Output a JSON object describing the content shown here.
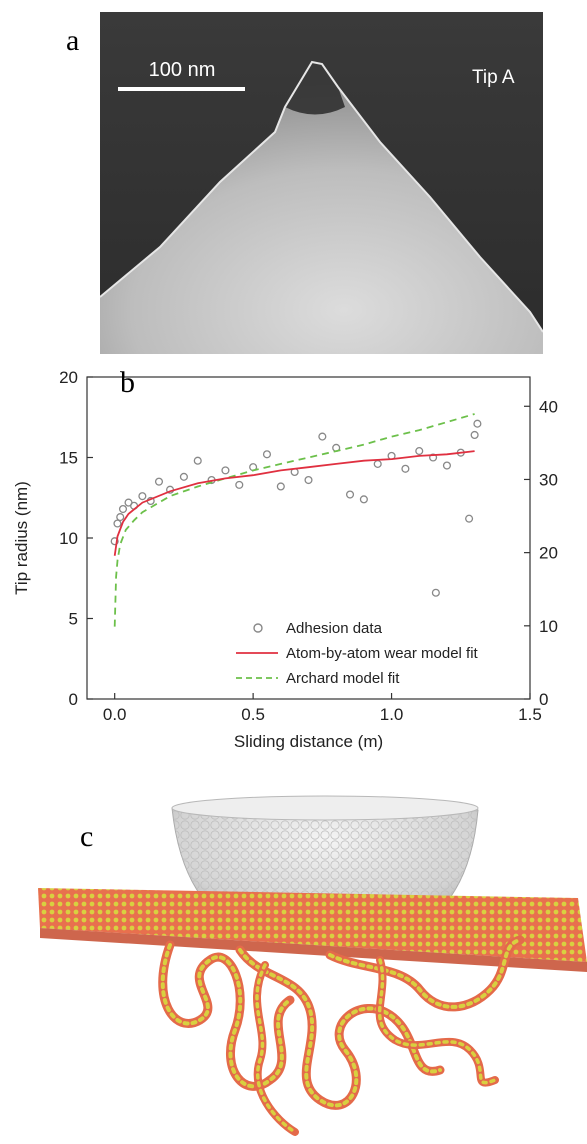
{
  "panel_a": {
    "letter": "a",
    "scale_bar_label": "100 nm",
    "tip_label": "Tip A"
  },
  "panel_c": {
    "letter": "c"
  },
  "chart_data": {
    "type": "scatter",
    "letter": "b",
    "xlabel": "Sliding distance (m)",
    "ylabel": "Tip radius (nm)",
    "xlim": [
      -0.1,
      1.5
    ],
    "ylim": [
      0,
      20
    ],
    "xticks": [
      0.0,
      0.5,
      1.0,
      1.5
    ],
    "xtick_labels": [
      "0.0",
      "0.5",
      "1.0",
      "1.5"
    ],
    "yticks": [
      0,
      5,
      10,
      15,
      20
    ],
    "ytick_labels": [
      "0",
      "5",
      "10",
      "15",
      "20"
    ],
    "y2lim": [
      0,
      44
    ],
    "y2ticks": [
      0,
      10,
      20,
      30,
      40
    ],
    "y2tick_labels": [
      "0",
      "10",
      "20",
      "30",
      "40"
    ],
    "grid": false,
    "legend_position": "bottom-right",
    "colors": {
      "adhesion": "#888888",
      "atom": "#e03040",
      "archard": "#6cc04a"
    },
    "series": [
      {
        "name": "Adhesion data",
        "style": "open-circle",
        "x": [
          0.0,
          0.01,
          0.02,
          0.03,
          0.05,
          0.07,
          0.1,
          0.13,
          0.16,
          0.2,
          0.25,
          0.3,
          0.35,
          0.4,
          0.45,
          0.5,
          0.55,
          0.6,
          0.65,
          0.7,
          0.75,
          0.8,
          0.85,
          0.9,
          0.95,
          1.0,
          1.05,
          1.1,
          1.15,
          1.2,
          1.25,
          1.28,
          1.3,
          1.31,
          1.16
        ],
        "y": [
          9.8,
          10.9,
          11.3,
          11.8,
          12.2,
          12.0,
          12.6,
          12.3,
          13.5,
          13.0,
          13.8,
          14.8,
          13.6,
          14.2,
          13.3,
          14.4,
          15.2,
          13.2,
          14.1,
          13.6,
          16.3,
          15.6,
          12.7,
          12.4,
          14.6,
          15.1,
          14.3,
          15.4,
          15.0,
          14.5,
          15.3,
          11.2,
          16.4,
          17.1,
          6.6
        ]
      },
      {
        "name": "Atom-by-atom wear model fit",
        "style": "solid",
        "x": [
          0.0,
          0.01,
          0.03,
          0.05,
          0.1,
          0.2,
          0.3,
          0.4,
          0.5,
          0.6,
          0.7,
          0.8,
          0.9,
          1.0,
          1.1,
          1.2,
          1.3
        ],
        "y": [
          8.9,
          10.1,
          11.0,
          11.5,
          12.2,
          12.9,
          13.4,
          13.7,
          13.9,
          14.2,
          14.4,
          14.6,
          14.8,
          14.9,
          15.1,
          15.2,
          15.4
        ]
      },
      {
        "name": "Archard model fit",
        "style": "dashed",
        "x": [
          0.0,
          0.005,
          0.01,
          0.02,
          0.04,
          0.07,
          0.1,
          0.2,
          0.3,
          0.4,
          0.5,
          0.6,
          0.7,
          0.8,
          0.9,
          1.0,
          1.1,
          1.2,
          1.3
        ],
        "y": [
          4.5,
          7.6,
          8.6,
          9.6,
          10.5,
          11.1,
          11.6,
          12.6,
          13.2,
          13.7,
          14.2,
          14.6,
          15.0,
          15.4,
          15.8,
          16.3,
          16.7,
          17.2,
          17.7
        ]
      }
    ]
  }
}
